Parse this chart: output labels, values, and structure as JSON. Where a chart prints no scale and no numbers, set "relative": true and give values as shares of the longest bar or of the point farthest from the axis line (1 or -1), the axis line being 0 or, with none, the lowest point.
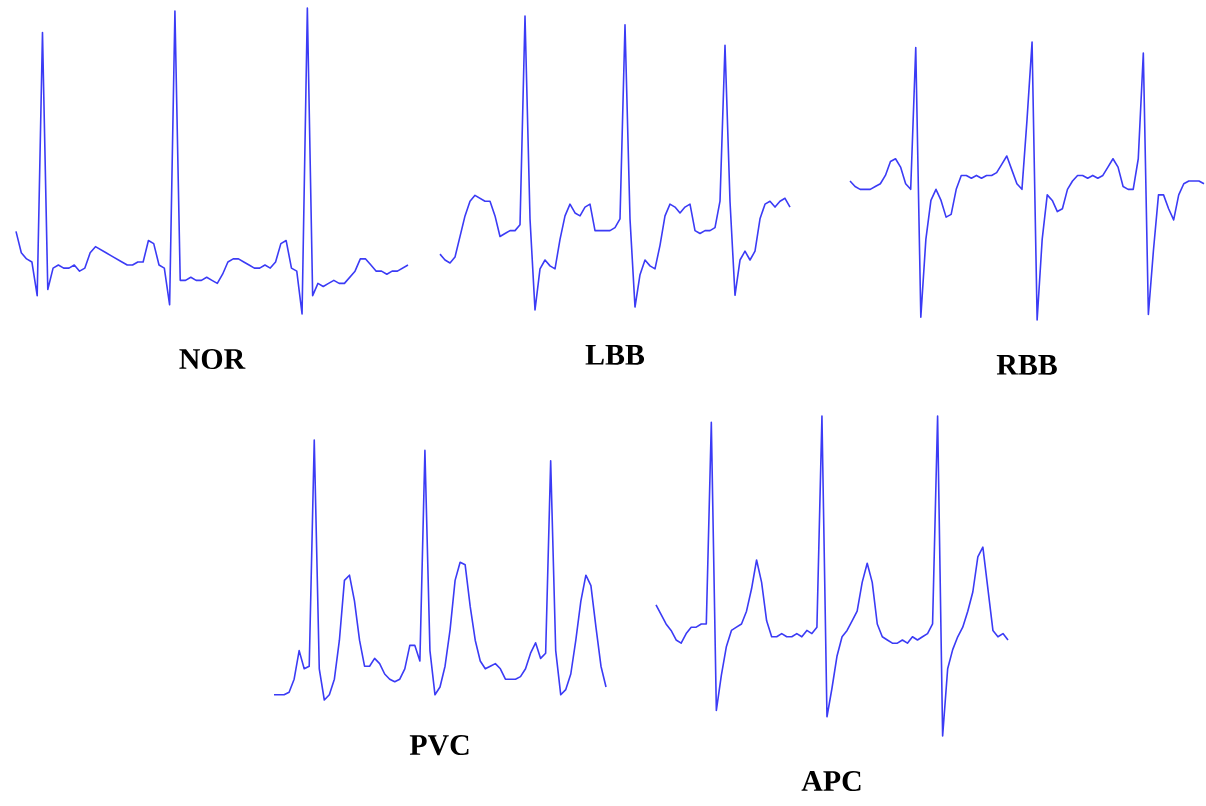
{
  "chart_data": [
    {
      "type": "line",
      "relative": true,
      "xlabel": "NOR",
      "color": "#3b3bf5",
      "categories": [
        null,
        null,
        null,
        null,
        null,
        null,
        null,
        null,
        null,
        null,
        null,
        null,
        null,
        null,
        null,
        null,
        null,
        null,
        null,
        null,
        null,
        null,
        null,
        null,
        null,
        null,
        null,
        null,
        null,
        null,
        null,
        null,
        null,
        null,
        null,
        null,
        null,
        null,
        null,
        null,
        null,
        null,
        null,
        null,
        null,
        null,
        null,
        null,
        null,
        null,
        null,
        null,
        null,
        null,
        null,
        null,
        null,
        null,
        null,
        null,
        null,
        null,
        null,
        null,
        null,
        null,
        null,
        null,
        null,
        null,
        null,
        null,
        null,
        null,
        null
      ],
      "values": [
        0.27,
        0.2,
        0.18,
        0.17,
        0.06,
        0.92,
        0.08,
        0.15,
        0.16,
        0.15,
        0.15,
        0.16,
        0.14,
        0.15,
        0.2,
        0.22,
        0.21,
        0.2,
        0.19,
        0.18,
        0.17,
        0.16,
        0.16,
        0.17,
        0.17,
        0.24,
        0.23,
        0.16,
        0.15,
        0.03,
        0.99,
        0.11,
        0.11,
        0.12,
        0.11,
        0.11,
        0.12,
        0.11,
        0.1,
        0.13,
        0.17,
        0.18,
        0.18,
        0.17,
        0.16,
        0.15,
        0.15,
        0.16,
        0.15,
        0.17,
        0.23,
        0.24,
        0.15,
        0.14,
        0,
        1,
        0.06,
        0.1,
        0.09,
        0.1,
        0.11,
        0.1,
        0.1,
        0.12,
        0.14,
        0.18,
        0.18,
        0.16,
        0.14,
        0.14,
        0.13,
        0.14,
        0.14,
        0.15,
        0.16
      ]
    },
    {
      "type": "line",
      "relative": true,
      "xlabel": "LBB",
      "color": "#3b3bf5",
      "categories": [
        null,
        null,
        null,
        null,
        null,
        null,
        null,
        null,
        null,
        null,
        null,
        null,
        null,
        null,
        null,
        null,
        null,
        null,
        null,
        null,
        null,
        null,
        null,
        null,
        null,
        null,
        null,
        null,
        null,
        null,
        null,
        null,
        null,
        null,
        null,
        null,
        null,
        null,
        null,
        null,
        null,
        null,
        null,
        null,
        null,
        null,
        null,
        null,
        null,
        null,
        null,
        null,
        null,
        null,
        null,
        null,
        null,
        null,
        null,
        null,
        null,
        null,
        null,
        null,
        null,
        null,
        null,
        null,
        null,
        null,
        null
      ],
      "values": [
        0.19,
        0.17,
        0.16,
        0.18,
        0.25,
        0.32,
        0.37,
        0.39,
        0.38,
        0.37,
        0.37,
        0.32,
        0.25,
        0.26,
        0.27,
        0.27,
        0.29,
        1,
        0.31,
        0,
        0.14,
        0.17,
        0.15,
        0.14,
        0.24,
        0.32,
        0.36,
        0.33,
        0.32,
        0.35,
        0.36,
        0.27,
        0.27,
        0.27,
        0.27,
        0.28,
        0.31,
        0.97,
        0.31,
        0.01,
        0.12,
        0.17,
        0.15,
        0.14,
        0.22,
        0.32,
        0.36,
        0.35,
        0.33,
        0.35,
        0.36,
        0.27,
        0.26,
        0.27,
        0.27,
        0.28,
        0.37,
        0.9,
        0.37,
        0.05,
        0.17,
        0.2,
        0.17,
        0.2,
        0.31,
        0.36,
        0.37,
        0.35,
        0.37,
        0.38,
        0.35
      ]
    },
    {
      "type": "line",
      "relative": true,
      "xlabel": "RBB",
      "color": "#3b3bf5",
      "categories": [
        null,
        null,
        null,
        null,
        null,
        null,
        null,
        null,
        null,
        null,
        null,
        null,
        null,
        null,
        null,
        null,
        null,
        null,
        null,
        null,
        null,
        null,
        null,
        null,
        null,
        null,
        null,
        null,
        null,
        null,
        null,
        null,
        null,
        null,
        null,
        null,
        null,
        null,
        null,
        null,
        null,
        null,
        null,
        null,
        null,
        null,
        null,
        null,
        null,
        null,
        null,
        null,
        null,
        null,
        null,
        null,
        null,
        null,
        null,
        null,
        null,
        null,
        null,
        null,
        null,
        null,
        null,
        null,
        null,
        null,
        null
      ],
      "values": [
        0.5,
        0.48,
        0.47,
        0.47,
        0.47,
        0.48,
        0.49,
        0.52,
        0.57,
        0.58,
        0.55,
        0.49,
        0.47,
        0.98,
        0.01,
        0.29,
        0.43,
        0.47,
        0.43,
        0.37,
        0.38,
        0.47,
        0.52,
        0.52,
        0.51,
        0.52,
        0.51,
        0.52,
        0.52,
        0.53,
        0.56,
        0.59,
        0.54,
        0.49,
        0.47,
        0.72,
        1,
        0,
        0.29,
        0.45,
        0.43,
        0.39,
        0.4,
        0.47,
        0.5,
        0.52,
        0.52,
        0.51,
        0.52,
        0.51,
        0.52,
        0.55,
        0.58,
        0.55,
        0.48,
        0.47,
        0.47,
        0.58,
        0.96,
        0.02,
        0.25,
        0.45,
        0.45,
        0.4,
        0.36,
        0.45,
        0.49,
        0.5,
        0.5,
        0.5,
        0.49
      ]
    },
    {
      "type": "line",
      "relative": true,
      "xlabel": "PVC",
      "color": "#3b3bf5",
      "categories": [
        null,
        null,
        null,
        null,
        null,
        null,
        null,
        null,
        null,
        null,
        null,
        null,
        null,
        null,
        null,
        null,
        null,
        null,
        null,
        null,
        null,
        null,
        null,
        null,
        null,
        null,
        null,
        null,
        null,
        null,
        null,
        null,
        null,
        null,
        null,
        null,
        null,
        null,
        null,
        null,
        null,
        null,
        null,
        null,
        null,
        null,
        null,
        null,
        null,
        null,
        null,
        null,
        null,
        null,
        null,
        null,
        null,
        null,
        null,
        null,
        null,
        null,
        null,
        null,
        null,
        null,
        null
      ],
      "values": [
        0.02,
        0.02,
        0.02,
        0.03,
        0.08,
        0.19,
        0.12,
        0.13,
        1,
        0.12,
        0,
        0.02,
        0.08,
        0.23,
        0.46,
        0.48,
        0.38,
        0.23,
        0.13,
        0.13,
        0.16,
        0.14,
        0.1,
        0.08,
        0.07,
        0.08,
        0.12,
        0.21,
        0.21,
        0.15,
        0.96,
        0.19,
        0.02,
        0.05,
        0.13,
        0.27,
        0.46,
        0.53,
        0.52,
        0.36,
        0.23,
        0.15,
        0.12,
        0.13,
        0.14,
        0.12,
        0.08,
        0.08,
        0.08,
        0.09,
        0.12,
        0.18,
        0.22,
        0.16,
        0.18,
        0.92,
        0.19,
        0.02,
        0.04,
        0.1,
        0.23,
        0.38,
        0.48,
        0.44,
        0.28,
        0.13,
        0.05
      ]
    },
    {
      "type": "line",
      "relative": true,
      "xlabel": "APC",
      "color": "#3b3bf5",
      "categories": [
        null,
        null,
        null,
        null,
        null,
        null,
        null,
        null,
        null,
        null,
        null,
        null,
        null,
        null,
        null,
        null,
        null,
        null,
        null,
        null,
        null,
        null,
        null,
        null,
        null,
        null,
        null,
        null,
        null,
        null,
        null,
        null,
        null,
        null,
        null,
        null,
        null,
        null,
        null,
        null,
        null,
        null,
        null,
        null,
        null,
        null,
        null,
        null,
        null,
        null,
        null,
        null,
        null,
        null,
        null,
        null,
        null,
        null,
        null,
        null,
        null,
        null,
        null,
        null,
        null,
        null,
        null,
        null,
        null,
        null,
        null
      ],
      "values": [
        0.41,
        0.38,
        0.35,
        0.33,
        0.3,
        0.29,
        0.32,
        0.34,
        0.34,
        0.35,
        0.35,
        0.98,
        0.08,
        0.19,
        0.28,
        0.33,
        0.34,
        0.35,
        0.39,
        0.46,
        0.55,
        0.48,
        0.36,
        0.31,
        0.31,
        0.32,
        0.31,
        0.31,
        0.32,
        0.31,
        0.33,
        0.32,
        0.34,
        1,
        0.06,
        0.15,
        0.25,
        0.31,
        0.33,
        0.36,
        0.39,
        0.48,
        0.54,
        0.48,
        0.35,
        0.31,
        0.3,
        0.29,
        0.29,
        0.3,
        0.29,
        0.31,
        0.3,
        0.31,
        0.32,
        0.35,
        1,
        0,
        0.21,
        0.27,
        0.31,
        0.34,
        0.39,
        0.45,
        0.56,
        0.59,
        0.46,
        0.33,
        0.31,
        0.32,
        0.3
      ]
    }
  ]
}
